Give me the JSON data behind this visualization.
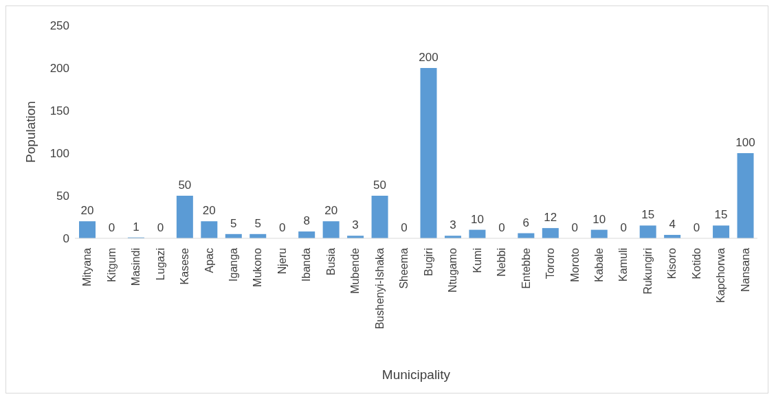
{
  "chart_data": {
    "type": "bar",
    "xlabel": "Municipality",
    "ylabel": "Population",
    "categories": [
      "Mityana",
      "Kitgum",
      "Masindi",
      "Lugazi",
      "Kasese",
      "Apac",
      "Iganga",
      "Mukono",
      "Njeru",
      "Ibanda",
      "Busia",
      "Mubende",
      "Bushenyi-Ishaka",
      "Sheema",
      "Bugiri",
      "Ntugamo",
      "Kumi",
      "Nebbi",
      "Entebbe",
      "Tororo",
      "Moroto",
      "Kabale",
      "Kamuli",
      "Rukungiri",
      "Kisoro",
      "Kotido",
      "Kapchorwa",
      "Nansana"
    ],
    "values": [
      20,
      0,
      1,
      0,
      50,
      20,
      5,
      5,
      0,
      8,
      20,
      3,
      50,
      0,
      200,
      3,
      10,
      0,
      6,
      12,
      0,
      10,
      0,
      15,
      4,
      0,
      15,
      100
    ],
    "color": "#5b9bd5",
    "ylim": [
      0,
      250
    ],
    "yticks": [
      0,
      50,
      100,
      150,
      200,
      250
    ],
    "grid": false,
    "data_labels": true
  }
}
